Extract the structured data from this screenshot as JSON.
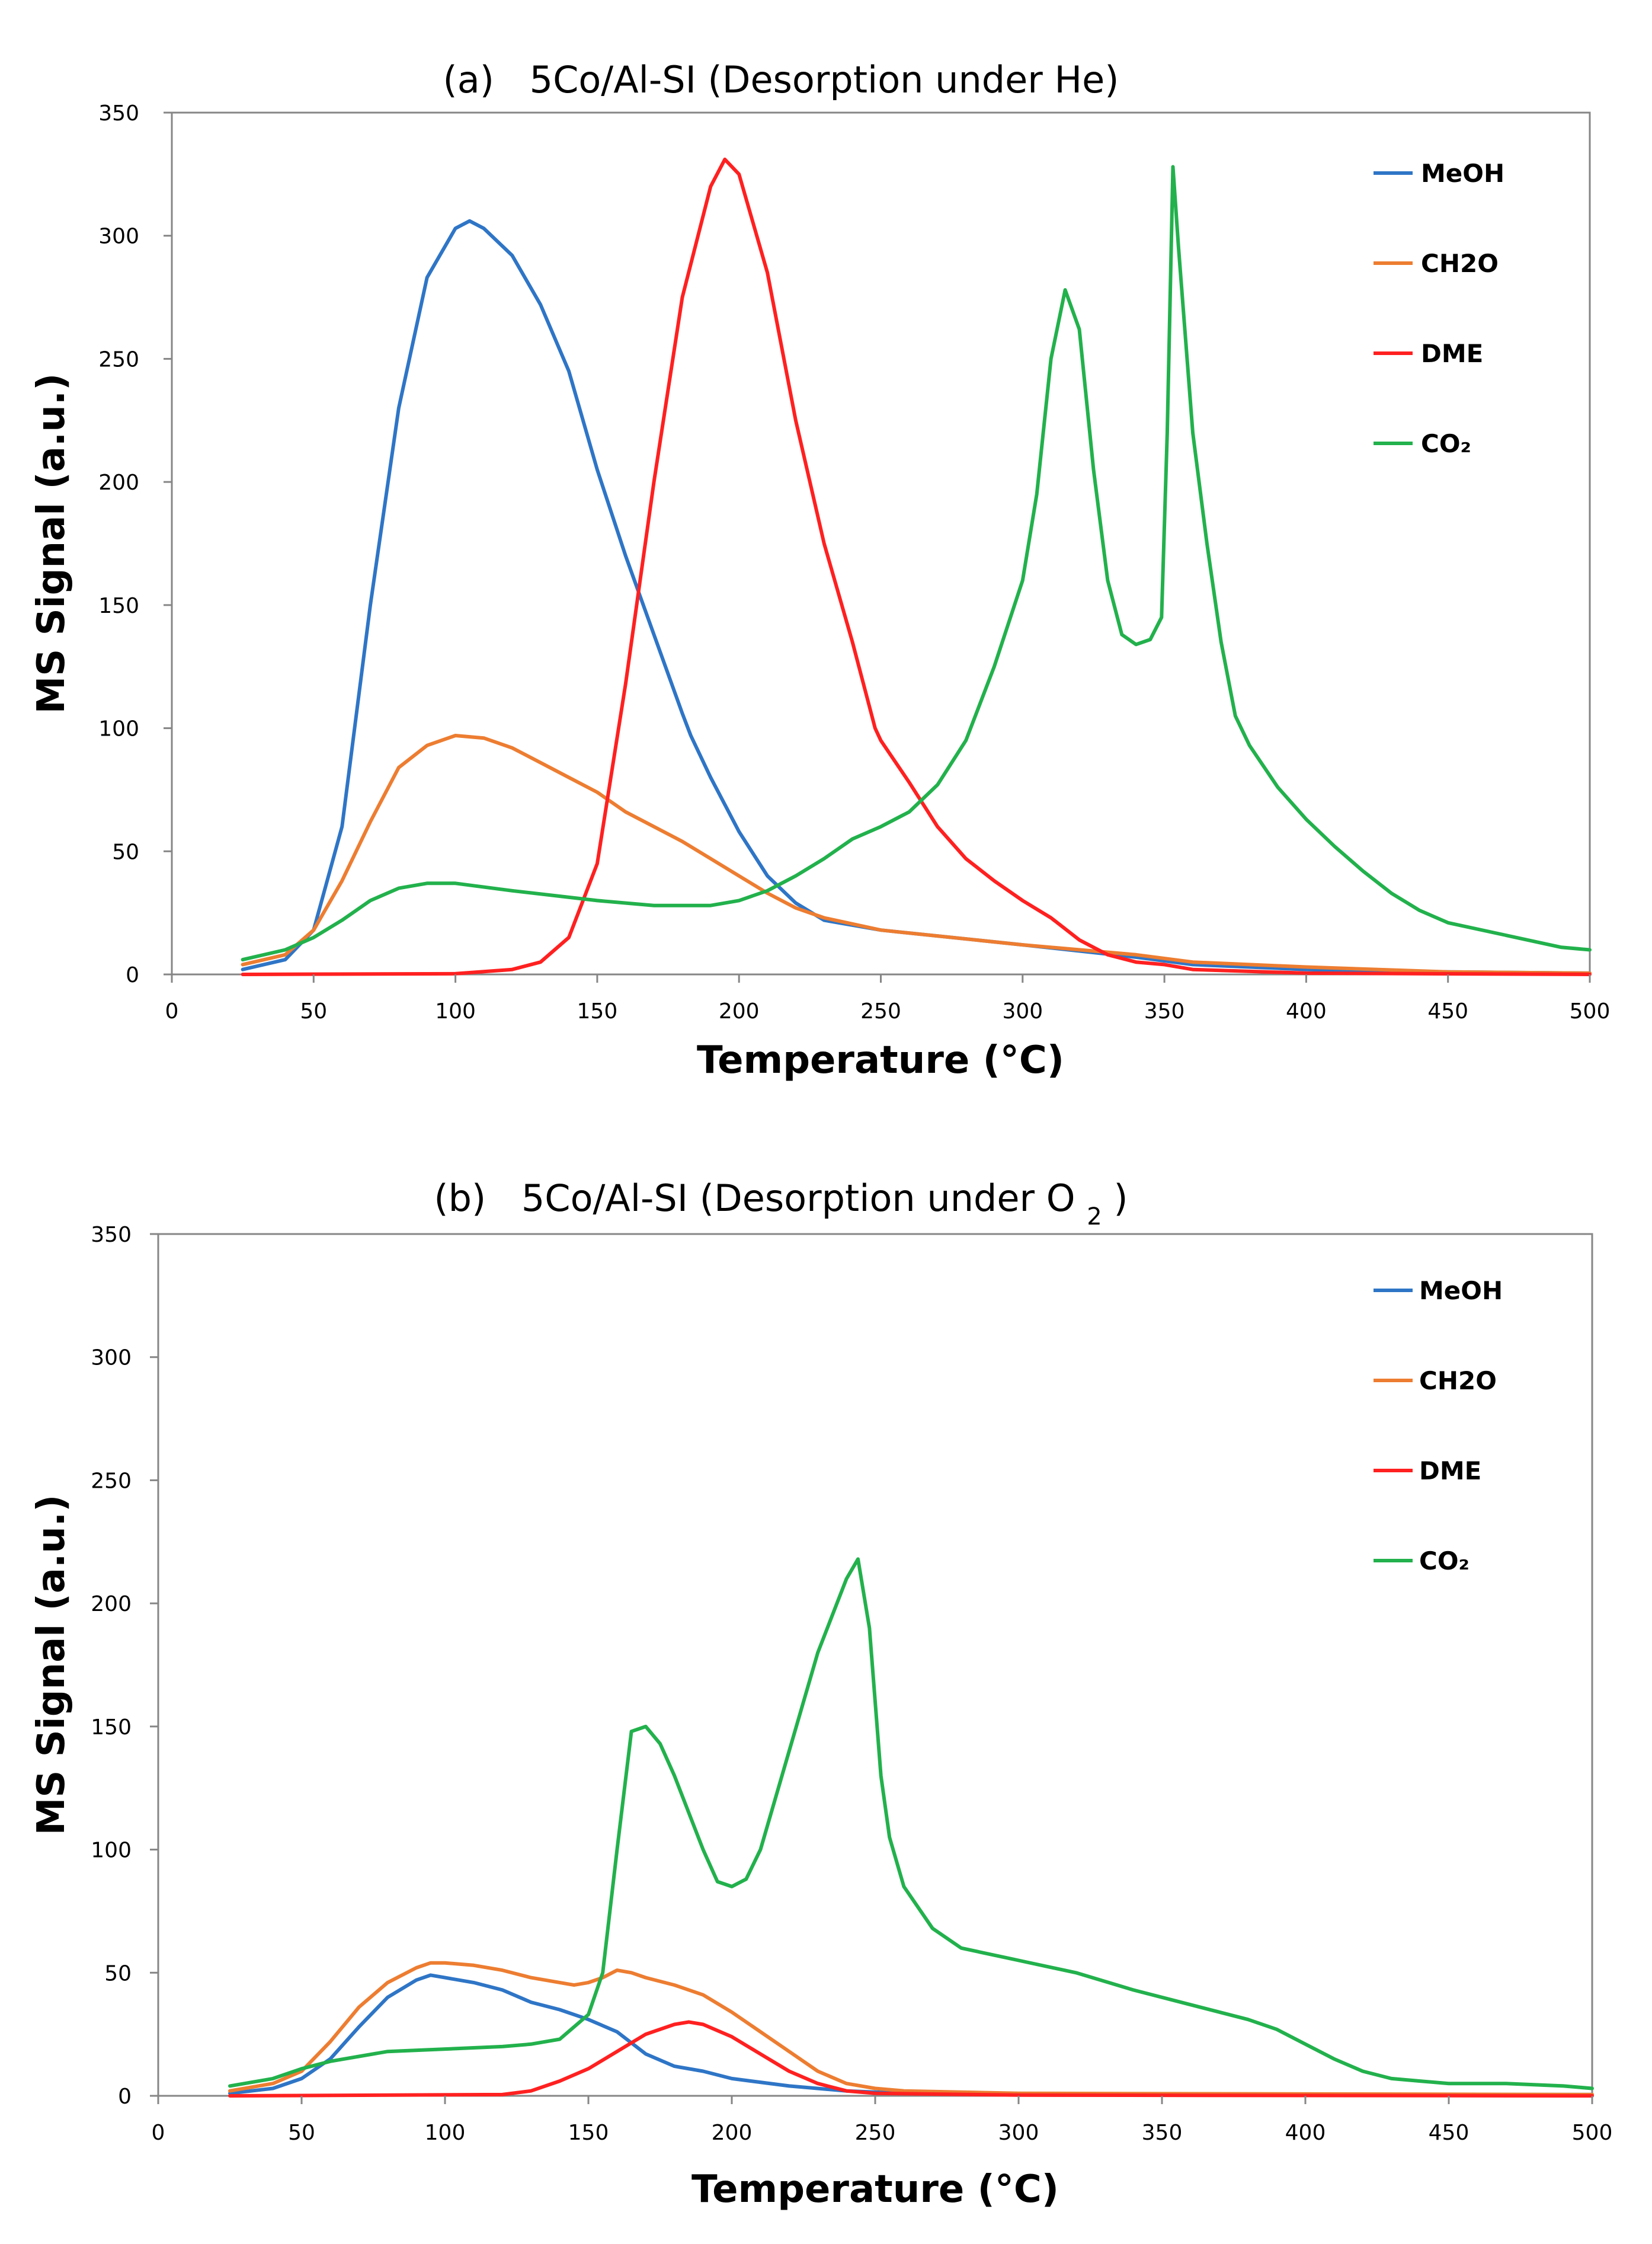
{
  "chart_data": [
    {
      "type": "line",
      "title_prefix": "(a)",
      "title": "5Co/Al-SI (Desorption under He)",
      "title_sub": "",
      "title_suffix": "",
      "xlabel": "Temperature (°C)",
      "ylabel": "MS Signal (a.u.)",
      "xlim": [
        0,
        500
      ],
      "ylim": [
        0,
        350
      ],
      "xticks": [
        0,
        50,
        100,
        150,
        200,
        250,
        300,
        350,
        400,
        450,
        500
      ],
      "yticks": [
        0,
        50,
        100,
        150,
        200,
        250,
        300,
        350
      ],
      "grid": false,
      "legend_position": "top-right",
      "series": [
        {
          "name": "MeOH",
          "color": "#2E75C6",
          "points": [
            [
              25,
              2
            ],
            [
              40,
              6
            ],
            [
              50,
              18
            ],
            [
              60,
              60
            ],
            [
              70,
              150
            ],
            [
              80,
              230
            ],
            [
              90,
              283
            ],
            [
              100,
              303
            ],
            [
              105,
              306
            ],
            [
              110,
              303
            ],
            [
              120,
              292
            ],
            [
              130,
              272
            ],
            [
              140,
              245
            ],
            [
              150,
              205
            ],
            [
              160,
              170
            ],
            [
              170,
              138
            ],
            [
              180,
              106
            ],
            [
              183,
              97
            ],
            [
              190,
              80
            ],
            [
              200,
              58
            ],
            [
              210,
              40
            ],
            [
              220,
              29
            ],
            [
              230,
              22
            ],
            [
              250,
              18
            ],
            [
              300,
              12
            ],
            [
              340,
              7
            ],
            [
              360,
              4
            ],
            [
              400,
              2
            ],
            [
              450,
              1
            ],
            [
              500,
              0.5
            ]
          ]
        },
        {
          "name": "CH2O",
          "color": "#ED7D31",
          "points": [
            [
              25,
              4
            ],
            [
              40,
              8
            ],
            [
              50,
              18
            ],
            [
              60,
              38
            ],
            [
              70,
              62
            ],
            [
              80,
              84
            ],
            [
              90,
              93
            ],
            [
              100,
              97
            ],
            [
              110,
              96
            ],
            [
              120,
              92
            ],
            [
              130,
              86
            ],
            [
              140,
              80
            ],
            [
              150,
              74
            ],
            [
              160,
              66
            ],
            [
              170,
              60
            ],
            [
              180,
              54
            ],
            [
              190,
              47
            ],
            [
              200,
              40
            ],
            [
              210,
              33
            ],
            [
              220,
              27
            ],
            [
              230,
              23
            ],
            [
              250,
              18
            ],
            [
              300,
              12
            ],
            [
              340,
              8
            ],
            [
              360,
              5
            ],
            [
              400,
              3
            ],
            [
              450,
              1
            ],
            [
              500,
              0.5
            ]
          ]
        },
        {
          "name": "DME",
          "color": "#FF2020",
          "points": [
            [
              25,
              0
            ],
            [
              100,
              0.3
            ],
            [
              120,
              2
            ],
            [
              130,
              5
            ],
            [
              140,
              15
            ],
            [
              150,
              45
            ],
            [
              160,
              118
            ],
            [
              170,
              200
            ],
            [
              180,
              275
            ],
            [
              190,
              320
            ],
            [
              195,
              331
            ],
            [
              200,
              325
            ],
            [
              210,
              285
            ],
            [
              220,
              225
            ],
            [
              230,
              175
            ],
            [
              240,
              135
            ],
            [
              248,
              100
            ],
            [
              250,
              95
            ],
            [
              260,
              78
            ],
            [
              270,
              60
            ],
            [
              280,
              47
            ],
            [
              290,
              38
            ],
            [
              300,
              30
            ],
            [
              310,
              23
            ],
            [
              320,
              14
            ],
            [
              330,
              8
            ],
            [
              340,
              5
            ],
            [
              350,
              4
            ],
            [
              360,
              2
            ],
            [
              400,
              0.5
            ],
            [
              500,
              0
            ]
          ]
        },
        {
          "name": "CO2",
          "color": "#22B14C",
          "points": [
            [
              25,
              6
            ],
            [
              40,
              10
            ],
            [
              50,
              15
            ],
            [
              60,
              22
            ],
            [
              70,
              30
            ],
            [
              80,
              35
            ],
            [
              90,
              37
            ],
            [
              100,
              37
            ],
            [
              120,
              34
            ],
            [
              150,
              30
            ],
            [
              170,
              28
            ],
            [
              190,
              28
            ],
            [
              200,
              30
            ],
            [
              210,
              34
            ],
            [
              220,
              40
            ],
            [
              230,
              47
            ],
            [
              240,
              55
            ],
            [
              250,
              60
            ],
            [
              260,
              66
            ],
            [
              270,
              77
            ],
            [
              280,
              95
            ],
            [
              290,
              125
            ],
            [
              300,
              160
            ],
            [
              305,
              195
            ],
            [
              310,
              250
            ],
            [
              315,
              278
            ],
            [
              320,
              262
            ],
            [
              325,
              205
            ],
            [
              330,
              160
            ],
            [
              335,
              138
            ],
            [
              340,
              134
            ],
            [
              345,
              136
            ],
            [
              349,
              145
            ],
            [
              351,
              220
            ],
            [
              353,
              328
            ],
            [
              355,
              295
            ],
            [
              360,
              220
            ],
            [
              365,
              175
            ],
            [
              370,
              135
            ],
            [
              375,
              105
            ],
            [
              380,
              93
            ],
            [
              390,
              76
            ],
            [
              400,
              63
            ],
            [
              410,
              52
            ],
            [
              420,
              42
            ],
            [
              430,
              33
            ],
            [
              440,
              26
            ],
            [
              450,
              21
            ],
            [
              470,
              16
            ],
            [
              490,
              11
            ],
            [
              500,
              10
            ]
          ]
        }
      ]
    },
    {
      "type": "line",
      "title_prefix": "(b)",
      "title": "5Co/Al-SI (Desorption under O",
      "title_sub": "2",
      "title_suffix": ")",
      "xlabel": "Temperature (°C)",
      "ylabel": "MS Signal (a.u.)",
      "xlim": [
        0,
        500
      ],
      "ylim": [
        0,
        350
      ],
      "xticks": [
        0,
        50,
        100,
        150,
        200,
        250,
        300,
        350,
        400,
        450,
        500
      ],
      "yticks": [
        0,
        50,
        100,
        150,
        200,
        250,
        300,
        350
      ],
      "grid": false,
      "legend_position": "top-right",
      "series": [
        {
          "name": "MeOH",
          "color": "#2E75C6",
          "points": [
            [
              25,
              1
            ],
            [
              40,
              3
            ],
            [
              50,
              7
            ],
            [
              60,
              15
            ],
            [
              70,
              28
            ],
            [
              80,
              40
            ],
            [
              90,
              47
            ],
            [
              95,
              49
            ],
            [
              100,
              48
            ],
            [
              110,
              46
            ],
            [
              120,
              43
            ],
            [
              130,
              38
            ],
            [
              140,
              35
            ],
            [
              150,
              31
            ],
            [
              160,
              26
            ],
            [
              170,
              17
            ],
            [
              180,
              12
            ],
            [
              190,
              10
            ],
            [
              200,
              7
            ],
            [
              220,
              4
            ],
            [
              240,
              2
            ],
            [
              260,
              1
            ],
            [
              300,
              0.5
            ],
            [
              500,
              0.5
            ]
          ]
        },
        {
          "name": "CH2O",
          "color": "#ED7D31",
          "points": [
            [
              25,
              2
            ],
            [
              40,
              5
            ],
            [
              50,
              10
            ],
            [
              60,
              22
            ],
            [
              70,
              36
            ],
            [
              80,
              46
            ],
            [
              90,
              52
            ],
            [
              95,
              54
            ],
            [
              100,
              54
            ],
            [
              110,
              53
            ],
            [
              120,
              51
            ],
            [
              130,
              48
            ],
            [
              140,
              46
            ],
            [
              145,
              45
            ],
            [
              150,
              46
            ],
            [
              155,
              48
            ],
            [
              160,
              51
            ],
            [
              165,
              50
            ],
            [
              170,
              48
            ],
            [
              180,
              45
            ],
            [
              190,
              41
            ],
            [
              200,
              34
            ],
            [
              210,
              26
            ],
            [
              220,
              18
            ],
            [
              230,
              10
            ],
            [
              240,
              5
            ],
            [
              250,
              3
            ],
            [
              260,
              2
            ],
            [
              300,
              1
            ],
            [
              500,
              0.5
            ]
          ]
        },
        {
          "name": "DME",
          "color": "#FF2020",
          "points": [
            [
              25,
              0
            ],
            [
              120,
              0.5
            ],
            [
              130,
              2
            ],
            [
              140,
              6
            ],
            [
              150,
              11
            ],
            [
              160,
              18
            ],
            [
              170,
              25
            ],
            [
              180,
              29
            ],
            [
              185,
              30
            ],
            [
              190,
              29
            ],
            [
              200,
              24
            ],
            [
              210,
              17
            ],
            [
              220,
              10
            ],
            [
              230,
              5
            ],
            [
              240,
              2
            ],
            [
              250,
              1
            ],
            [
              300,
              0.3
            ],
            [
              500,
              0
            ]
          ]
        },
        {
          "name": "CO2",
          "color": "#22B14C",
          "points": [
            [
              25,
              4
            ],
            [
              40,
              7
            ],
            [
              50,
              11
            ],
            [
              60,
              14
            ],
            [
              70,
              16
            ],
            [
              80,
              18
            ],
            [
              100,
              19
            ],
            [
              120,
              20
            ],
            [
              130,
              21
            ],
            [
              140,
              23
            ],
            [
              150,
              33
            ],
            [
              155,
              50
            ],
            [
              160,
              100
            ],
            [
              165,
              148
            ],
            [
              170,
              150
            ],
            [
              175,
              143
            ],
            [
              180,
              130
            ],
            [
              185,
              115
            ],
            [
              190,
              100
            ],
            [
              195,
              87
            ],
            [
              200,
              85
            ],
            [
              205,
              88
            ],
            [
              210,
              100
            ],
            [
              220,
              140
            ],
            [
              230,
              180
            ],
            [
              240,
              210
            ],
            [
              244,
              218
            ],
            [
              248,
              190
            ],
            [
              252,
              130
            ],
            [
              255,
              105
            ],
            [
              260,
              85
            ],
            [
              270,
              68
            ],
            [
              280,
              60
            ],
            [
              300,
              55
            ],
            [
              320,
              50
            ],
            [
              340,
              43
            ],
            [
              360,
              37
            ],
            [
              380,
              31
            ],
            [
              390,
              27
            ],
            [
              400,
              21
            ],
            [
              410,
              15
            ],
            [
              420,
              10
            ],
            [
              430,
              7
            ],
            [
              440,
              6
            ],
            [
              450,
              5
            ],
            [
              470,
              5
            ],
            [
              490,
              4
            ],
            [
              500,
              3
            ]
          ]
        }
      ]
    }
  ]
}
